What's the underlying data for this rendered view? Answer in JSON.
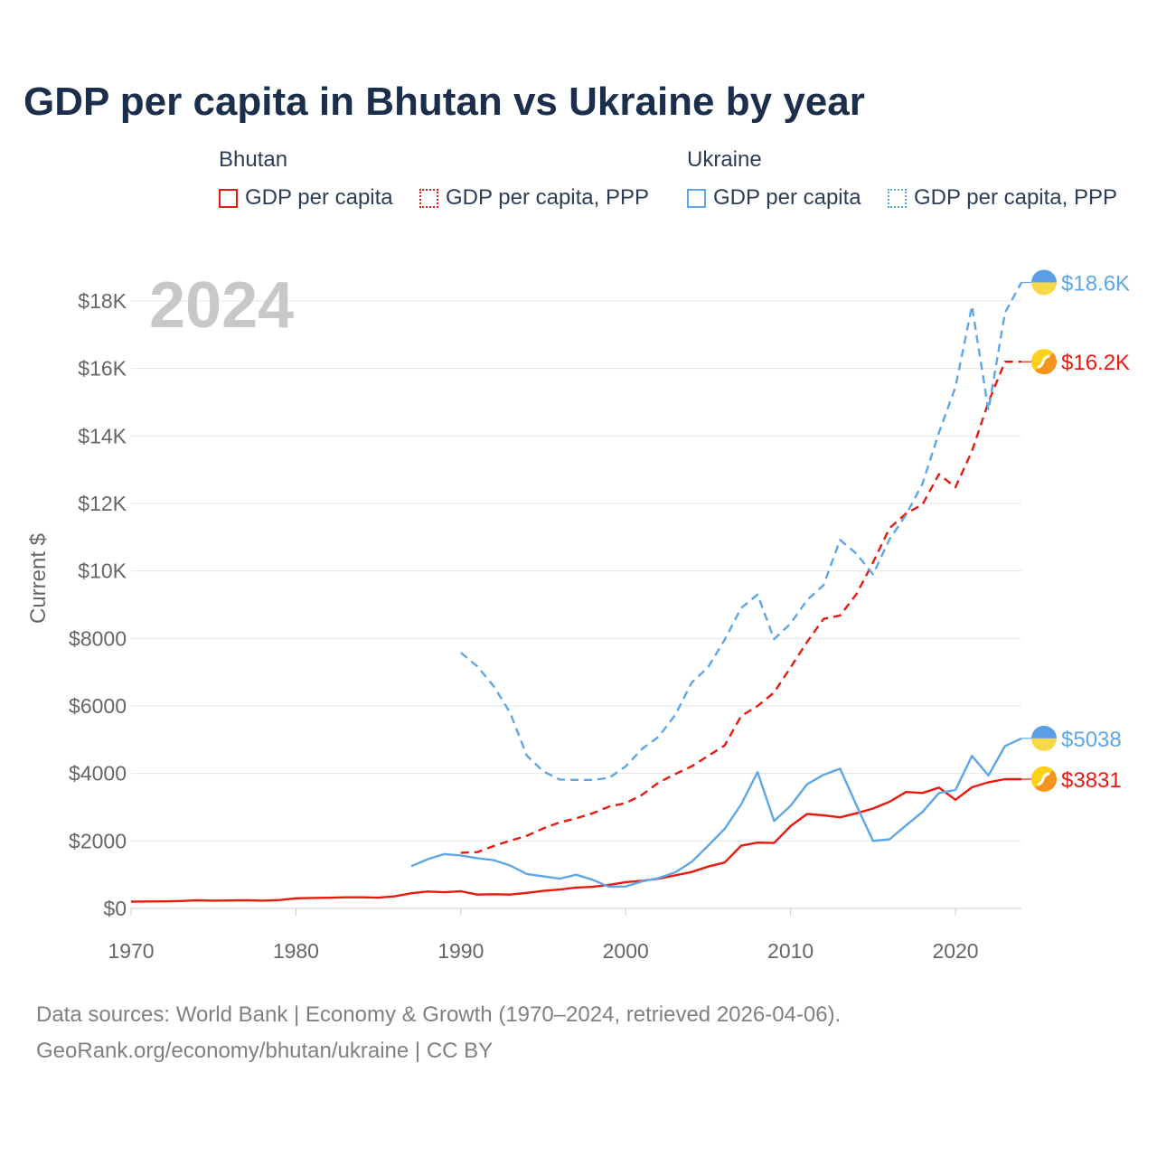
{
  "title": "GDP per capita in Bhutan vs Ukraine by year",
  "legend": {
    "bhutan_header": "Bhutan",
    "ukraine_header": "Ukraine",
    "bhutan_gdp": "GDP per capita",
    "bhutan_ppp": "GDP per capita, PPP",
    "ukraine_gdp": "GDP per capita",
    "ukraine_ppp": "GDP per capita, PPP"
  },
  "year_watermark": "2024",
  "footer": {
    "line1": "Data sources: World Bank | Economy & Growth (1970–2024, retrieved 2026-04-06).",
    "line2": "GeoRank.org/economy/bhutan/ukraine | CC BY"
  },
  "colors": {
    "bhutan": "#e8190f",
    "ukraine": "#5ea6e6",
    "grid": "#e6e6e6",
    "watermark": "#c8c8c8"
  },
  "chart_data": {
    "type": "line",
    "title": "GDP per capita in Bhutan vs Ukraine by year",
    "xlabel": "",
    "ylabel": "Current $",
    "xlim": [
      1970,
      2024
    ],
    "ylim": [
      0,
      18000
    ],
    "x_ticks": [
      1970,
      1980,
      1990,
      2000,
      2010,
      2020
    ],
    "x_tick_labels": [
      "1970",
      "1980",
      "1990",
      "2000",
      "2010",
      "2020"
    ],
    "y_ticks": [
      0,
      2000,
      4000,
      6000,
      8000,
      10000,
      12000,
      14000,
      16000,
      18000
    ],
    "y_tick_labels": [
      "$0",
      "$2000",
      "$4000",
      "$6000",
      "$8000",
      "$10K",
      "$12K",
      "$14K",
      "$16K",
      "$18K"
    ],
    "series": [
      {
        "name": "Bhutan GDP per capita",
        "country": "bhutan",
        "style": "solid",
        "end_label": "$3831",
        "x": [
          1970,
          1971,
          1972,
          1973,
          1974,
          1975,
          1976,
          1977,
          1978,
          1979,
          1980,
          1981,
          1982,
          1983,
          1984,
          1985,
          1986,
          1987,
          1988,
          1989,
          1990,
          1991,
          1992,
          1993,
          1994,
          1995,
          1996,
          1997,
          1998,
          1999,
          2000,
          2001,
          2002,
          2003,
          2004,
          2005,
          2006,
          2007,
          2008,
          2009,
          2010,
          2011,
          2012,
          2013,
          2014,
          2015,
          2016,
          2017,
          2018,
          2019,
          2020,
          2021,
          2022,
          2023,
          2024
        ],
        "y": [
          200,
          205,
          210,
          220,
          240,
          230,
          235,
          245,
          230,
          250,
          300,
          310,
          315,
          330,
          330,
          320,
          360,
          450,
          500,
          480,
          510,
          410,
          420,
          410,
          460,
          520,
          560,
          620,
          640,
          700,
          780,
          820,
          880,
          980,
          1080,
          1240,
          1360,
          1860,
          1950,
          1940,
          2440,
          2800,
          2760,
          2700,
          2820,
          2960,
          3160,
          3450,
          3420,
          3580,
          3220,
          3590,
          3740,
          3830,
          3831
        ]
      },
      {
        "name": "Bhutan GDP per capita, PPP",
        "country": "bhutan",
        "style": "dashed",
        "end_label": "$16.2K",
        "x": [
          1990,
          1991,
          1992,
          1993,
          1994,
          1995,
          1996,
          1997,
          1998,
          1999,
          2000,
          2001,
          2002,
          2003,
          2004,
          2005,
          2006,
          2007,
          2008,
          2009,
          2010,
          2011,
          2012,
          2013,
          2014,
          2015,
          2016,
          2017,
          2018,
          2019,
          2020,
          2021,
          2022,
          2023,
          2024
        ],
        "y": [
          1650,
          1670,
          1850,
          2010,
          2150,
          2370,
          2550,
          2670,
          2820,
          3020,
          3120,
          3370,
          3730,
          3980,
          4210,
          4520,
          4830,
          5700,
          6000,
          6400,
          7140,
          7900,
          8580,
          8680,
          9320,
          10250,
          11270,
          11700,
          11970,
          12870,
          12480,
          13550,
          15000,
          16200,
          16200
        ]
      },
      {
        "name": "Ukraine GDP per capita",
        "country": "ukraine",
        "style": "solid",
        "end_label": "$5038",
        "x": [
          1987,
          1988,
          1989,
          1990,
          1991,
          1992,
          1993,
          1994,
          1995,
          1996,
          1997,
          1998,
          1999,
          2000,
          2001,
          2002,
          2003,
          2004,
          2005,
          2006,
          2007,
          2008,
          2009,
          2010,
          2011,
          2012,
          2013,
          2014,
          2015,
          2016,
          2017,
          2018,
          2019,
          2020,
          2021,
          2022,
          2023,
          2024
        ],
        "y": [
          1250,
          1460,
          1610,
          1570,
          1490,
          1430,
          1270,
          1020,
          950,
          880,
          1000,
          850,
          640,
          650,
          800,
          900,
          1070,
          1380,
          1860,
          2360,
          3080,
          4040,
          2590,
          3040,
          3680,
          3960,
          4140,
          3050,
          2000,
          2050,
          2460,
          2860,
          3420,
          3510,
          4520,
          3940,
          4810,
          5038
        ]
      },
      {
        "name": "Ukraine GDP per capita, PPP",
        "country": "ukraine",
        "style": "dashed",
        "end_label": "$18.6K",
        "x": [
          1990,
          1991,
          1992,
          1993,
          1994,
          1995,
          1996,
          1997,
          1998,
          1999,
          2000,
          2001,
          2002,
          2003,
          2004,
          2005,
          2006,
          2007,
          2008,
          2009,
          2010,
          2011,
          2012,
          2013,
          2014,
          2015,
          2016,
          2017,
          2018,
          2019,
          2020,
          2021,
          2022,
          2023,
          2024
        ],
        "y": [
          7580,
          7170,
          6580,
          5790,
          4530,
          4060,
          3820,
          3810,
          3810,
          3870,
          4210,
          4730,
          5090,
          5730,
          6690,
          7150,
          7960,
          8900,
          9300,
          7980,
          8440,
          9140,
          9580,
          10920,
          10510,
          9900,
          10940,
          11660,
          12590,
          14100,
          15450,
          17850,
          14760,
          17650,
          18550
        ]
      }
    ]
  }
}
